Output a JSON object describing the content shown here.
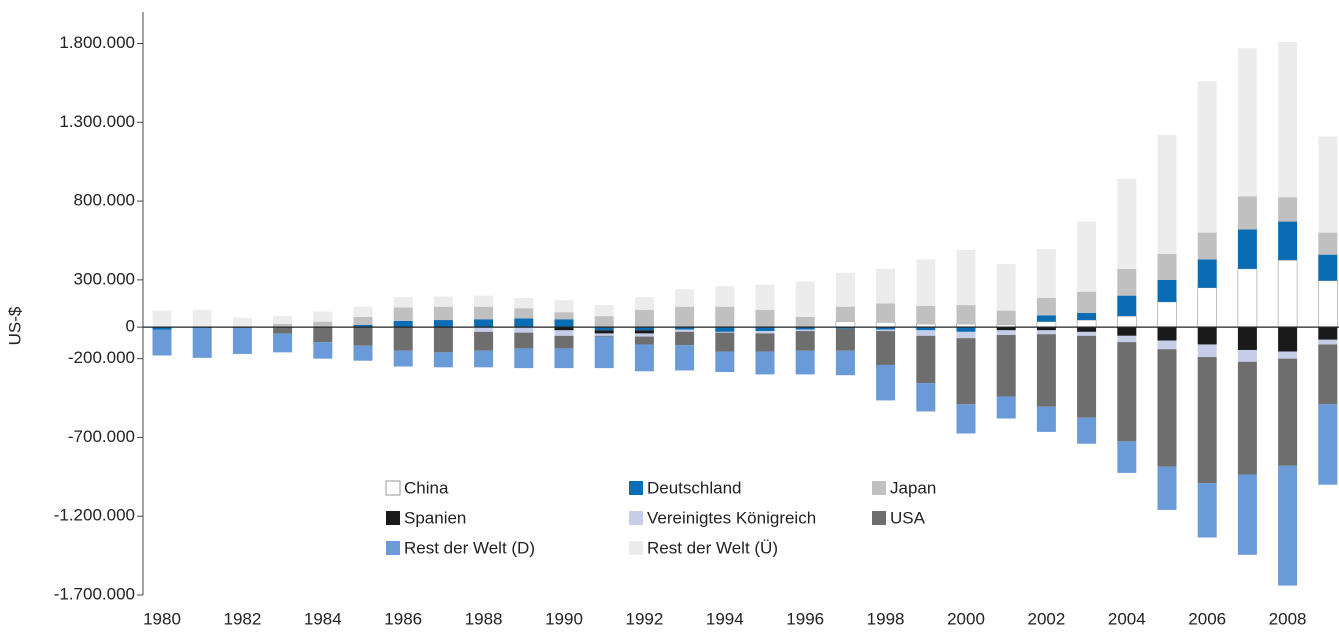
{
  "chart_data": {
    "type": "bar",
    "stacked": true,
    "y_label": "US-$",
    "categories": [
      "1980",
      null,
      "1982",
      null,
      "1984",
      null,
      "1986",
      null,
      "1988",
      null,
      "1990",
      null,
      "1992",
      null,
      "1994",
      null,
      "1996",
      null,
      "1998",
      null,
      "2000",
      null,
      "2002",
      null,
      "2004",
      null,
      "2006",
      null,
      "2008",
      null
    ],
    "ylim": [
      -1700000,
      2000000
    ],
    "yticks": [
      {
        "value": -1700000,
        "label": "-1.700.000"
      },
      {
        "value": -1200000,
        "label": "-1.200.000"
      },
      {
        "value": -700000,
        "label": "-700.000"
      },
      {
        "value": -200000,
        "label": "-200.000"
      },
      0,
      {
        "value": 300000,
        "label": "300.000"
      },
      {
        "value": 800000,
        "label": "800.000"
      },
      {
        "value": 1300000,
        "label": "1.300.000"
      },
      {
        "value": 1800000,
        "label": "1.800.000"
      }
    ],
    "series": [
      {
        "name": "China",
        "color": "#ffffff",
        "values": [
          0,
          0,
          0,
          0,
          0,
          0,
          0,
          0,
          0,
          0,
          0,
          0,
          0,
          0,
          0,
          0,
          0,
          35000,
          30000,
          20000,
          20000,
          15000,
          35000,
          45000,
          70000,
          160000,
          250000,
          370000,
          425000,
          295000
        ]
      },
      {
        "name": "Deutschland",
        "color": "#0a6db3",
        "values": [
          -15000,
          -5000,
          0,
          0,
          0,
          15000,
          40000,
          45000,
          50000,
          55000,
          50000,
          -20000,
          -20000,
          -15000,
          -30000,
          -25000,
          -15000,
          -10000,
          -15000,
          -20000,
          -30000,
          0,
          40000,
          45000,
          130000,
          140000,
          180000,
          250000,
          245000,
          165000
        ]
      },
      {
        "name": "Japan",
        "color": "#c0c0c0",
        "values": [
          0,
          0,
          5000,
          20000,
          35000,
          50000,
          85000,
          85000,
          80000,
          65000,
          45000,
          70000,
          110000,
          130000,
          130000,
          110000,
          65000,
          95000,
          120000,
          115000,
          120000,
          90000,
          110000,
          135000,
          170000,
          165000,
          170000,
          210000,
          155000,
          140000
        ]
      },
      {
        "name": "Spanien",
        "color": "#1a1a1a",
        "values": [
          0,
          0,
          0,
          0,
          0,
          0,
          0,
          0,
          0,
          0,
          -20000,
          -20000,
          -20000,
          0,
          0,
          0,
          0,
          0,
          0,
          0,
          0,
          -20000,
          -20000,
          -30000,
          -55000,
          -85000,
          -110000,
          -145000,
          -155000,
          -80000
        ]
      },
      {
        "name": "Vereinigtes Königreich",
        "color": "#c5cde9",
        "values": [
          0,
          0,
          0,
          0,
          0,
          0,
          0,
          0,
          -30000,
          -35000,
          -35000,
          -15000,
          -20000,
          -15000,
          -5000,
          -15000,
          -10000,
          0,
          -10000,
          -35000,
          -40000,
          -30000,
          -25000,
          -25000,
          -40000,
          -55000,
          -80000,
          -75000,
          -45000,
          -30000
        ]
      },
      {
        "name": "USA",
        "color": "#6e6e6e",
        "values": [
          0,
          0,
          -5000,
          -40000,
          -95000,
          -118000,
          -150000,
          -160000,
          -120000,
          -100000,
          -80000,
          -5000,
          -50000,
          -85000,
          -120000,
          -115000,
          -125000,
          -140000,
          -215000,
          -300000,
          -420000,
          -390000,
          -460000,
          -520000,
          -630000,
          -745000,
          -800000,
          -715000,
          -680000,
          -380000
        ]
      },
      {
        "name": "Rest der Welt (D)",
        "color": "#6a9bd8",
        "values": [
          -165000,
          -190000,
          -165000,
          -120000,
          -105000,
          -95000,
          -100000,
          -95000,
          -105000,
          -125000,
          -125000,
          -200000,
          -170000,
          -160000,
          -130000,
          -145000,
          -150000,
          -155000,
          -225000,
          -180000,
          -185000,
          -140000,
          -160000,
          -165000,
          -200000,
          -275000,
          -345000,
          -510000,
          -760000,
          -510000
        ]
      },
      {
        "name": "Rest der Welt (Ü)",
        "color": "#ececec",
        "values": [
          105000,
          110000,
          55000,
          50000,
          65000,
          65000,
          65000,
          65000,
          70000,
          65000,
          75000,
          70000,
          80000,
          110000,
          130000,
          160000,
          225000,
          215000,
          220000,
          295000,
          350000,
          295000,
          310000,
          445000,
          570000,
          755000,
          960000,
          940000,
          985000,
          610000
        ]
      }
    ]
  }
}
